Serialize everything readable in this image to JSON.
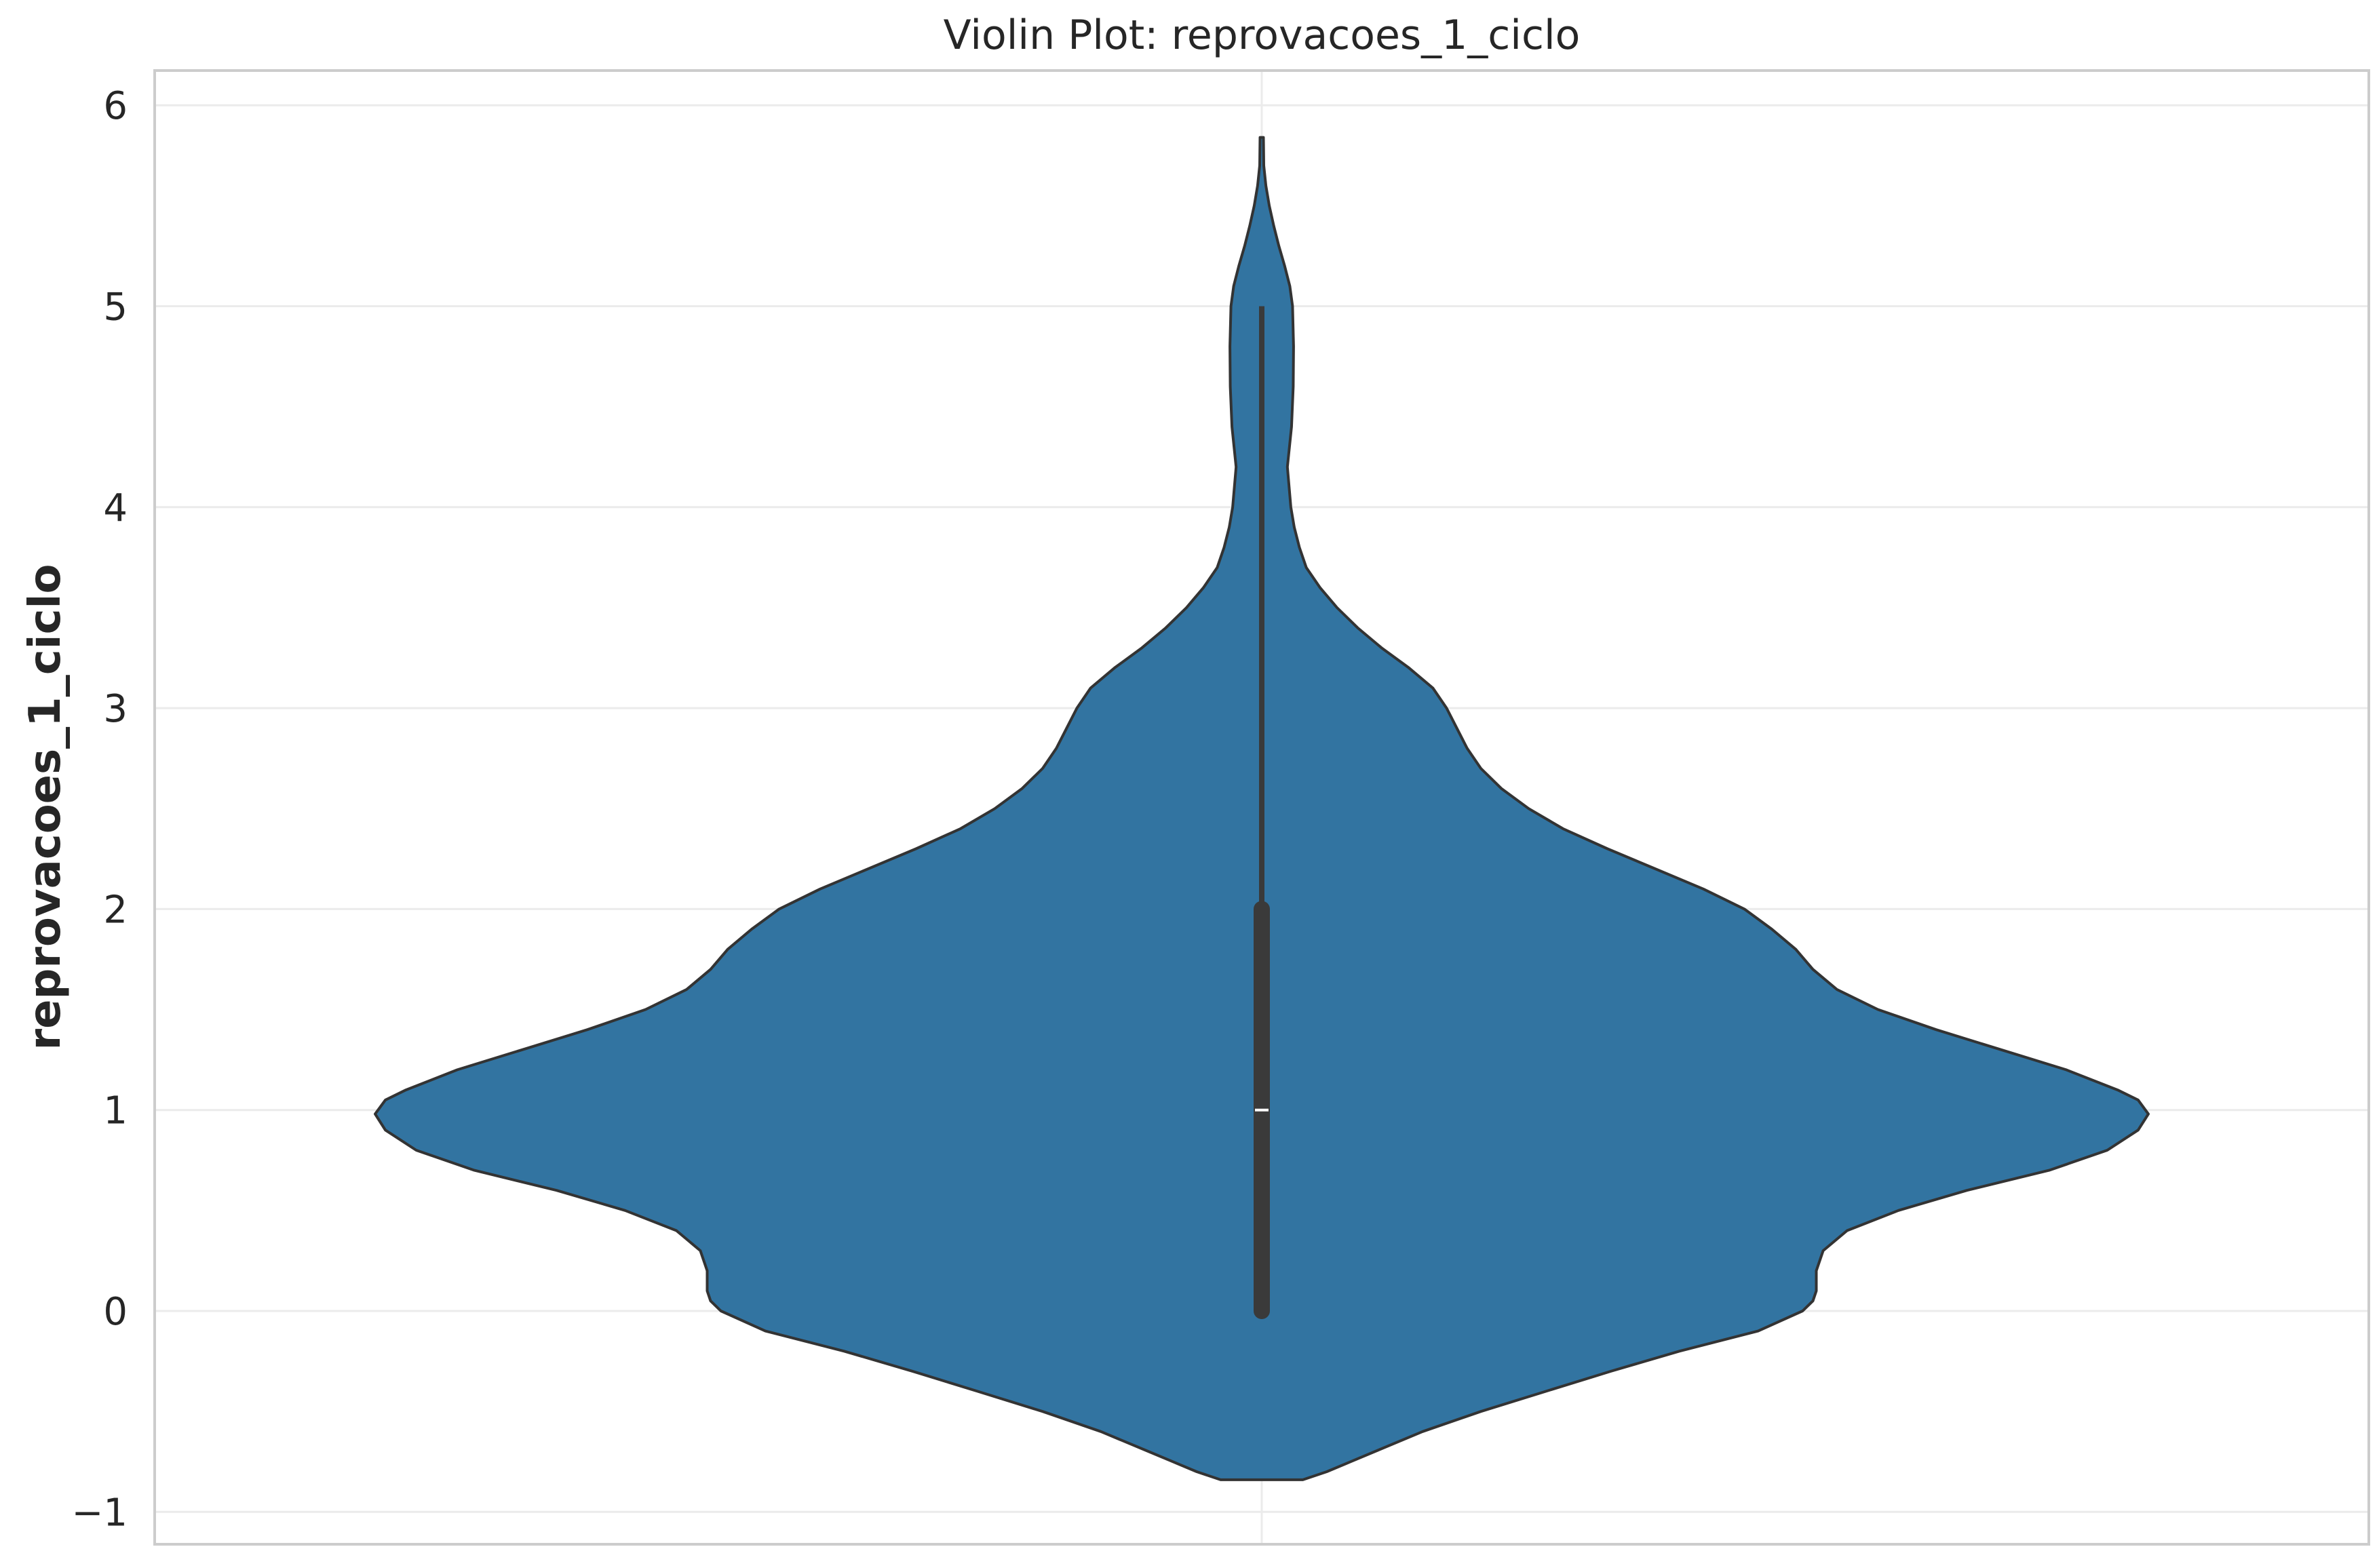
{
  "chart_data": {
    "type": "violin",
    "title": "Violin Plot: reprovacoes_1_ciclo",
    "xlabel": "",
    "ylabel": "reprovacoes_1_ciclo",
    "ylim": [
      -1.2,
      6.18
    ],
    "yticks": [
      -1,
      0,
      1,
      2,
      3,
      4,
      5,
      6
    ],
    "ytick_labels": [
      "−1",
      "0",
      "1",
      "2",
      "3",
      "4",
      "5",
      "6"
    ],
    "grid": true,
    "legend": "none",
    "colors": {
      "violin_fill": "#3274a1",
      "violin_edge": "#333333",
      "box_color": "#3a3a3a",
      "median_color": "#ffffff",
      "grid_color": "#ebebeb",
      "spine_color": "#cccccc",
      "text_color": "#262626"
    },
    "violin": {
      "density_profile": [
        [
          -0.84,
          0.12
        ],
        [
          -0.8,
          0.19
        ],
        [
          -0.75,
          0.26
        ],
        [
          -0.7,
          0.33
        ],
        [
          -0.6,
          0.47
        ],
        [
          -0.5,
          0.64
        ],
        [
          -0.4,
          0.83
        ],
        [
          -0.3,
          1.02
        ],
        [
          -0.2,
          1.22
        ],
        [
          -0.1,
          1.45
        ],
        [
          0.0,
          1.58
        ],
        [
          0.05,
          1.61
        ],
        [
          0.1,
          1.62
        ],
        [
          0.2,
          1.62
        ],
        [
          0.3,
          1.64
        ],
        [
          0.4,
          1.71
        ],
        [
          0.5,
          1.86
        ],
        [
          0.6,
          2.06
        ],
        [
          0.7,
          2.3
        ],
        [
          0.8,
          2.47
        ],
        [
          0.9,
          2.56
        ],
        [
          0.98,
          2.59
        ],
        [
          1.05,
          2.56
        ],
        [
          1.1,
          2.5
        ],
        [
          1.2,
          2.35
        ],
        [
          1.3,
          2.16
        ],
        [
          1.4,
          1.97
        ],
        [
          1.5,
          1.8
        ],
        [
          1.6,
          1.68
        ],
        [
          1.7,
          1.61
        ],
        [
          1.8,
          1.56
        ],
        [
          1.9,
          1.49
        ],
        [
          2.0,
          1.41
        ],
        [
          2.1,
          1.29
        ],
        [
          2.2,
          1.15
        ],
        [
          2.3,
          1.01
        ],
        [
          2.4,
          0.88
        ],
        [
          2.5,
          0.78
        ],
        [
          2.6,
          0.7
        ],
        [
          2.7,
          0.64
        ],
        [
          2.8,
          0.6
        ],
        [
          2.9,
          0.57
        ],
        [
          3.0,
          0.54
        ],
        [
          3.1,
          0.5
        ],
        [
          3.2,
          0.43
        ],
        [
          3.3,
          0.35
        ],
        [
          3.4,
          0.28
        ],
        [
          3.5,
          0.22
        ],
        [
          3.6,
          0.17
        ],
        [
          3.7,
          0.13
        ],
        [
          3.8,
          0.11
        ],
        [
          3.9,
          0.095
        ],
        [
          4.0,
          0.085
        ],
        [
          4.2,
          0.075
        ],
        [
          4.4,
          0.087
        ],
        [
          4.6,
          0.092
        ],
        [
          4.8,
          0.093
        ],
        [
          5.0,
          0.09
        ],
        [
          5.1,
          0.082
        ],
        [
          5.2,
          0.067
        ],
        [
          5.3,
          0.05
        ],
        [
          5.4,
          0.035
        ],
        [
          5.5,
          0.022
        ],
        [
          5.6,
          0.012
        ],
        [
          5.7,
          0.006
        ],
        [
          5.84,
          0.005
        ]
      ],
      "box": {
        "whisker_low": 0,
        "q1": 0,
        "median": 1,
        "q3": 2,
        "whisker_high": 5
      }
    }
  }
}
